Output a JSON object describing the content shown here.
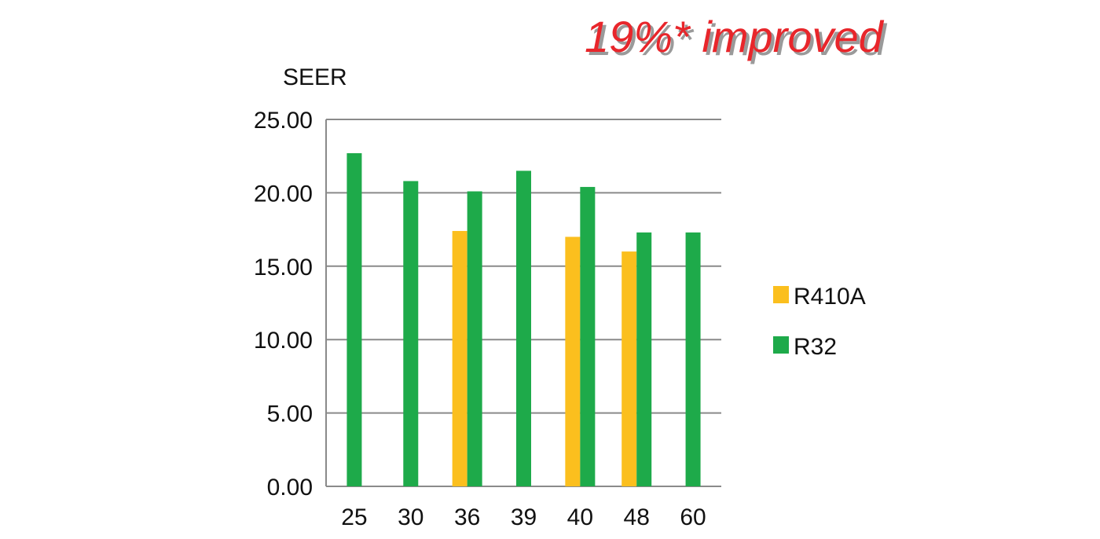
{
  "headline": "19%* improved",
  "colors": {
    "headline": "#e8262b",
    "headline_shadow": "#9a9a9a",
    "r410a": "#fbbf1e",
    "r32": "#1eaa4a",
    "grid": "#8a8a8a"
  },
  "chart_data": {
    "type": "bar",
    "title": "",
    "xlabel": "",
    "ylabel": "SEER",
    "ylim": [
      0,
      25
    ],
    "yticks": [
      "0.00",
      "5.00",
      "10.00",
      "15.00",
      "20.00",
      "25.00"
    ],
    "categories": [
      "25",
      "30",
      "36",
      "39",
      "40",
      "48",
      "60"
    ],
    "series": [
      {
        "name": "R410A",
        "values": [
          null,
          null,
          17.4,
          null,
          17.0,
          16.0,
          null
        ]
      },
      {
        "name": "R32",
        "values": [
          22.7,
          20.8,
          20.1,
          21.5,
          20.4,
          17.3,
          17.3
        ]
      }
    ],
    "grid": true,
    "legend_position": "right"
  }
}
